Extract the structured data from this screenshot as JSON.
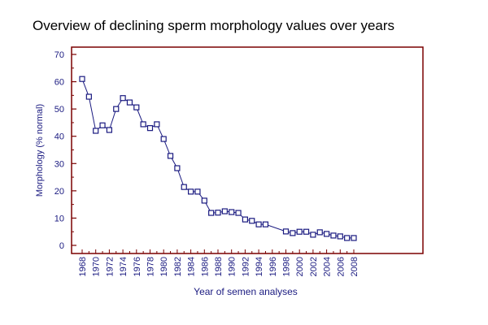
{
  "chart_data": {
    "type": "line",
    "title": "Overview of declining sperm morphology values over years",
    "xlabel": "Year of semen analyses",
    "ylabel": "Morphology (% normal)",
    "ylim": [
      0,
      70
    ],
    "xlim": [
      1968,
      2008
    ],
    "yticks": [
      0,
      10,
      20,
      30,
      40,
      50,
      60,
      70
    ],
    "xticks": [
      "1968",
      "1970",
      "1972",
      "1974",
      "1976",
      "1978",
      "1980",
      "1982",
      "1984",
      "1986",
      "1988",
      "1990",
      "1992",
      "1994",
      "1996",
      "1998",
      "2000",
      "2002",
      "2004",
      "2006",
      "2008"
    ],
    "grid": false,
    "colors": {
      "line": "#1a1a80",
      "axis": "#7a0000",
      "ticklabel": "#1a1a80"
    },
    "x": [
      1968,
      1969,
      1970,
      1971,
      1972,
      1973,
      1974,
      1975,
      1976,
      1977,
      1978,
      1979,
      1980,
      1981,
      1982,
      1983,
      1984,
      1985,
      1986,
      1987,
      1988,
      1989,
      1990,
      1991,
      1992,
      1993,
      1994,
      1995,
      1998,
      1999,
      2000,
      2001,
      2002,
      2003,
      2004,
      2005,
      2006,
      2007,
      2008
    ],
    "y": [
      61,
      54.5,
      42,
      44,
      42.3,
      50,
      54,
      52.4,
      50.6,
      44.4,
      43,
      44.4,
      39,
      32.8,
      28.3,
      21.4,
      19.7,
      19.7,
      16.4,
      11.9,
      12,
      12.5,
      12.2,
      11.9,
      9.5,
      9,
      7.7,
      7.7,
      5.1,
      4.5,
      5,
      5,
      3.9,
      4.8,
      4.2,
      3.6,
      3.3,
      2.7,
      2.7
    ]
  }
}
